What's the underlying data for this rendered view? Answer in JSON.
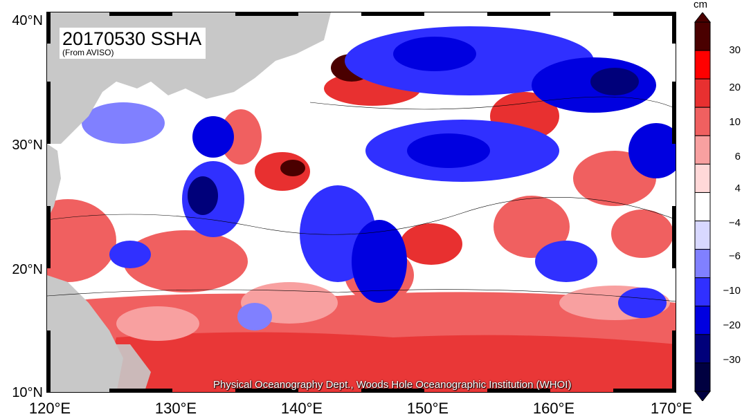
{
  "map": {
    "title": "20170530 SSHA",
    "subtitle": "(From AVISO)",
    "credit": "Physical Oceanography Dept., Woods Hole Oceanographic Institution (WHOI)",
    "lat_labels": [
      "40°N",
      "30°N",
      "20°N",
      "10°N"
    ],
    "lon_labels": [
      "120°E",
      "130°E",
      "140°E",
      "150°E",
      "160°E",
      "170°E"
    ],
    "land_color": "#c8c8c8"
  },
  "colorbar": {
    "unit": "cm",
    "labels": [
      "30",
      "20",
      "10",
      "6",
      "4",
      "−4",
      "−6",
      "−10",
      "−20",
      "−30"
    ],
    "colors": [
      "#4a0000",
      "#ff0000",
      "#e83030",
      "#f06060",
      "#f8a0a0",
      "#ffd8d8",
      "#ffffff",
      "#d8d8ff",
      "#8080ff",
      "#3030ff",
      "#0000e0",
      "#00007a",
      "#000040"
    ]
  }
}
